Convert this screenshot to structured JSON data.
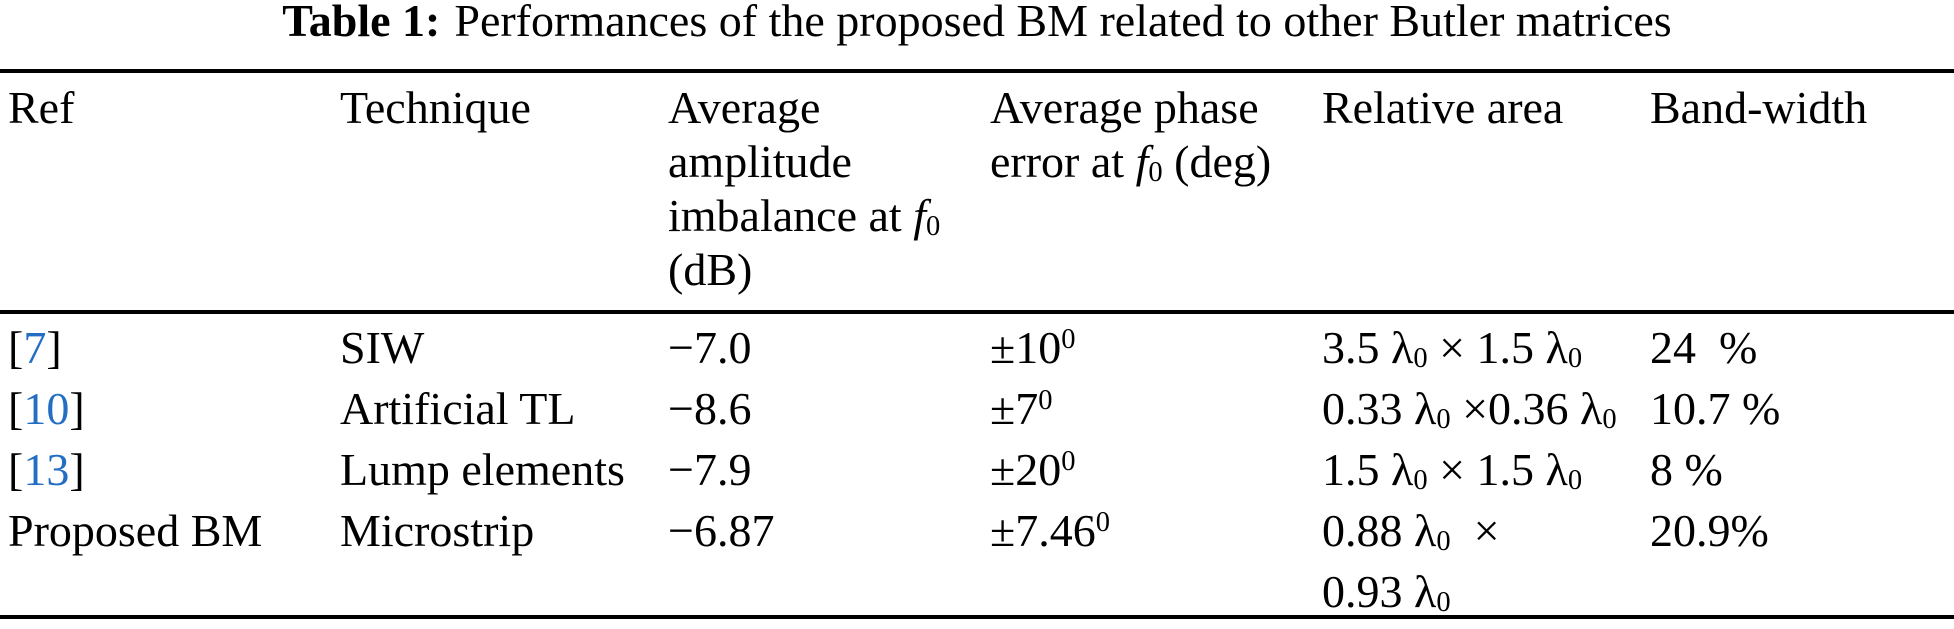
{
  "caption": {
    "label": "Table 1:",
    "text": "Performances of the proposed BM related to other Butler matrices"
  },
  "colors": {
    "text": "#000000",
    "rule": "#000000",
    "background": "#ffffff",
    "citation_link": "#236ec3"
  },
  "table": {
    "headers": [
      [
        {
          "t": "Ref"
        }
      ],
      [
        {
          "t": "Technique"
        }
      ],
      [
        {
          "t": "Average"
        },
        {
          "br": true
        },
        {
          "t": "amplitude"
        },
        {
          "br": true
        },
        {
          "t": "imbalance at "
        },
        {
          "t": "f",
          "s": "i"
        },
        {
          "t": "0",
          "s": "sub"
        },
        {
          "br": true
        },
        {
          "t": "(dB)"
        }
      ],
      [
        {
          "t": "Average phase"
        },
        {
          "br": true
        },
        {
          "t": "error at "
        },
        {
          "t": "f",
          "s": "i"
        },
        {
          "t": "0",
          "s": "sub"
        },
        {
          "t": " (deg)"
        }
      ],
      [
        {
          "t": "Relative area"
        }
      ],
      [
        {
          "t": "Band-width"
        }
      ]
    ],
    "rows": [
      [
        [
          {
            "t": "["
          },
          {
            "t": "7",
            "s": "link"
          },
          {
            "t": "]"
          }
        ],
        [
          {
            "t": "SIW"
          }
        ],
        [
          {
            "t": "−7.0"
          }
        ],
        [
          {
            "t": "±10"
          },
          {
            "t": "0",
            "s": "sup"
          }
        ],
        [
          {
            "t": "3.5 "
          },
          {
            "t": "λ"
          },
          {
            "t": "0",
            "s": "sub"
          },
          {
            "t": " × 1.5 "
          },
          {
            "t": "λ"
          },
          {
            "t": "0",
            "s": "sub"
          }
        ],
        [
          {
            "t": "24  %"
          }
        ]
      ],
      [
        [
          {
            "t": "["
          },
          {
            "t": "10",
            "s": "link"
          },
          {
            "t": "]"
          }
        ],
        [
          {
            "t": "Artificial TL"
          }
        ],
        [
          {
            "t": "−8.6"
          }
        ],
        [
          {
            "t": "±7"
          },
          {
            "t": "0",
            "s": "sup"
          }
        ],
        [
          {
            "t": "0.33 "
          },
          {
            "t": "λ"
          },
          {
            "t": "0",
            "s": "sub"
          },
          {
            "t": " ×0.36 "
          },
          {
            "t": "λ"
          },
          {
            "t": "0",
            "s": "sub"
          }
        ],
        [
          {
            "t": "10.7 %"
          }
        ]
      ],
      [
        [
          {
            "t": "["
          },
          {
            "t": "13",
            "s": "link"
          },
          {
            "t": "]"
          }
        ],
        [
          {
            "t": "Lump elements"
          }
        ],
        [
          {
            "t": "−7.9"
          }
        ],
        [
          {
            "t": "±20"
          },
          {
            "t": "0",
            "s": "sup"
          }
        ],
        [
          {
            "t": "1.5 "
          },
          {
            "t": "λ"
          },
          {
            "t": "0",
            "s": "sub"
          },
          {
            "t": " × 1.5 "
          },
          {
            "t": "λ"
          },
          {
            "t": "0",
            "s": "sub"
          }
        ],
        [
          {
            "t": "8 %"
          }
        ]
      ],
      [
        [
          {
            "t": "Proposed BM"
          }
        ],
        [
          {
            "t": "Microstrip"
          }
        ],
        [
          {
            "t": "−6.87"
          }
        ],
        [
          {
            "t": "±7.46"
          },
          {
            "t": "0",
            "s": "sup"
          }
        ],
        [
          {
            "t": "0.88 "
          },
          {
            "t": "λ"
          },
          {
            "t": "0",
            "s": "sub"
          },
          {
            "t": "  ×"
          },
          {
            "br": true
          },
          {
            "t": "0.93 "
          },
          {
            "t": "λ"
          },
          {
            "t": "0",
            "s": "sub"
          }
        ],
        [
          {
            "t": "20.9%"
          }
        ]
      ]
    ]
  }
}
